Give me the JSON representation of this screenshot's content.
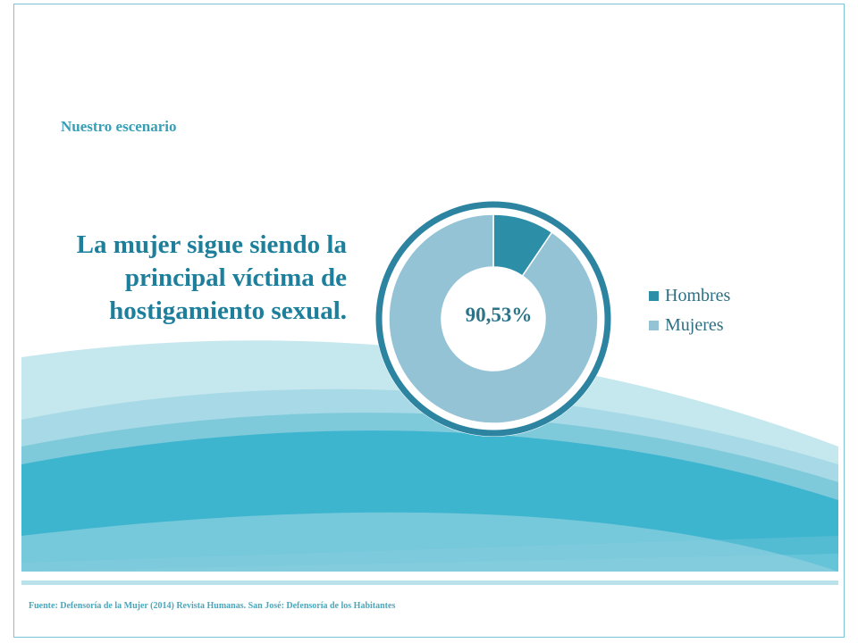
{
  "slide": {
    "section_label": "Nuestro escenario",
    "headline": "La mujer sigue siendo la principal víctima de hostigamiento sexual.",
    "source": "Fuente: Defensoría de la Mujer (2014) Revista Humanas. San José: Defensoría de los Habitantes"
  },
  "colors": {
    "hombres": "#2d8ea8",
    "mujeres": "#94c3d6",
    "ring": "#2d84a0",
    "wave_dark": "#2aaecb",
    "wave_light": "#c5e7ee"
  },
  "chart_data": {
    "type": "pie",
    "variant": "donut",
    "categories": [
      "Hombres",
      "Mujeres"
    ],
    "values": [
      9.47,
      90.53
    ],
    "center_label": "90,53%",
    "legend": [
      "Hombres",
      "Mujeres"
    ],
    "legend_position": "right"
  }
}
